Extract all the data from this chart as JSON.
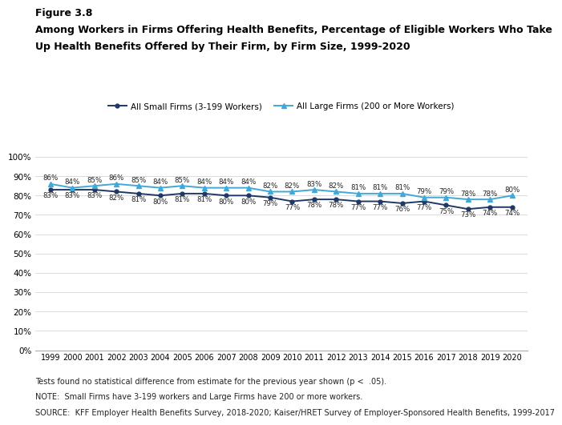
{
  "years": [
    1999,
    2000,
    2001,
    2002,
    2003,
    2004,
    2005,
    2006,
    2007,
    2008,
    2009,
    2010,
    2011,
    2012,
    2013,
    2014,
    2015,
    2016,
    2017,
    2018,
    2019,
    2020
  ],
  "small_firms": [
    83,
    83,
    83,
    82,
    81,
    80,
    81,
    81,
    80,
    80,
    79,
    77,
    78,
    78,
    77,
    77,
    76,
    77,
    75,
    73,
    74,
    74
  ],
  "large_firms": [
    86,
    84,
    85,
    86,
    85,
    84,
    85,
    84,
    84,
    84,
    82,
    82,
    83,
    82,
    81,
    81,
    81,
    79,
    79,
    78,
    78,
    80
  ],
  "small_color": "#1f3864",
  "large_color": "#41a8d8",
  "small_label": "All Small Firms (3-199 Workers)",
  "large_label": "All Large Firms (200 or More Workers)",
  "title_line1": "Figure 3.8",
  "title_line2": "Among Workers in Firms Offering Health Benefits, Percentage of Eligible Workers Who Take",
  "title_line3": "Up Health Benefits Offered by Their Firm, by Firm Size, 1999-2020",
  "ylim": [
    0,
    100
  ],
  "yticks": [
    0,
    10,
    20,
    30,
    40,
    50,
    60,
    70,
    80,
    90,
    100
  ],
  "footnote1": "Tests found no statistical difference from estimate for the previous year shown (p <  .05).",
  "footnote2": "NOTE:  Small Firms have 3-199 workers and Large Firms have 200 or more workers.",
  "footnote3": "SOURCE:  KFF Employer Health Benefits Survey, 2018-2020; Kaiser/HRET Survey of Employer-Sponsored Health Benefits, 1999-2017",
  "background_color": "#ffffff"
}
